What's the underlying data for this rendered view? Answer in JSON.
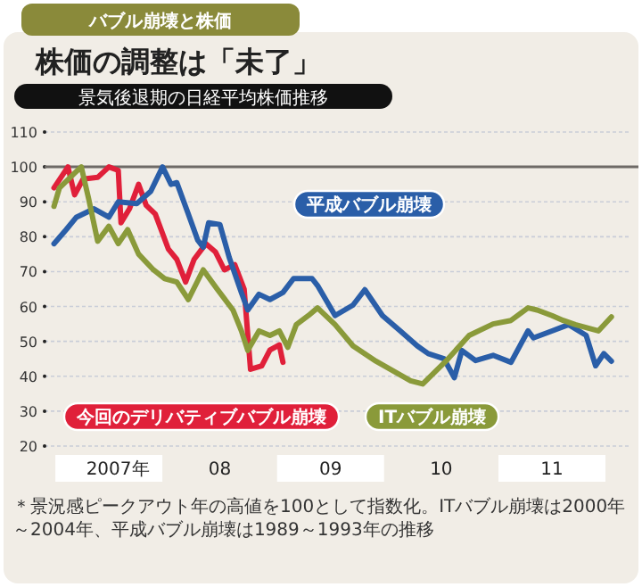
{
  "chart_data": {
    "type": "line",
    "title": "株価の調整は「未了」",
    "subtitle": "景気後退期の日経平均株価推移",
    "annotations": [
      "バブル崩壊と株価",
      "＊景況感ピークアウト年の高値を100として指数化。ITバブル崩壊は2000年～2004年、平成バブル崩壊は1989～1993年の推移"
    ],
    "xlim": [
      "2006-12-01",
      "2012-03-01"
    ],
    "xticks": [
      {
        "value": "2007-07-01",
        "label": "2007年"
      },
      {
        "value": "2008-07-01",
        "label": "08"
      },
      {
        "value": "2009-07-01",
        "label": "09"
      },
      {
        "value": "2010-07-01",
        "label": "10"
      },
      {
        "value": "2011-07-01",
        "label": "11"
      }
    ],
    "ylim": [
      20,
      110
    ],
    "yticks": [
      20,
      30,
      40,
      50,
      60,
      70,
      80,
      90,
      100,
      110
    ],
    "grid": "y",
    "ref_lines": [
      {
        "axis": "y",
        "value": 100,
        "color": "#6e6a66"
      }
    ],
    "series": [
      {
        "name": "今回のデリバティブバブル崩壊",
        "color": "#e0203a",
        "x": [
          "2007-01-01",
          "2007-02-16",
          "2007-03-10",
          "2007-04-07",
          "2007-05-25",
          "2007-07-01",
          "2007-08-01",
          "2007-08-10",
          "2007-09-07",
          "2007-10-07",
          "2007-11-01",
          "2007-12-01",
          "2008-01-13",
          "2008-02-10",
          "2008-03-10",
          "2008-04-07",
          "2008-05-16",
          "2008-06-16",
          "2008-07-16",
          "2008-08-19",
          "2008-09-19",
          "2008-10-10",
          "2008-11-16",
          "2008-12-13",
          "2009-01-13",
          "2009-01-25"
        ],
        "values": [
          94,
          100,
          92,
          96.5,
          97,
          100,
          99,
          84,
          88,
          95,
          89,
          86.5,
          76.5,
          73.5,
          67,
          73.5,
          78,
          75.7,
          70.5,
          72,
          65,
          42,
          43,
          47.5,
          49,
          44
        ]
      },
      {
        "name": "平成バブル崩壊",
        "color": "#2a5ea8",
        "x": [
          "2007-01-01",
          "2007-02-10",
          "2007-03-16",
          "2007-05-13",
          "2007-07-01",
          "2007-08-01",
          "2007-10-01",
          "2007-11-16",
          "2007-12-25",
          "2008-01-22",
          "2008-02-10",
          "2008-03-19",
          "2008-04-19",
          "2008-05-07",
          "2008-05-25",
          "2008-07-01",
          "2008-08-01",
          "2008-09-10",
          "2008-10-01",
          "2008-11-07",
          "2008-12-13",
          "2009-01-25",
          "2009-03-01",
          "2009-05-01",
          "2009-05-19",
          "2009-07-16",
          "2009-09-13",
          "2009-10-22",
          "2009-12-19",
          "2010-02-16",
          "2010-04-13",
          "2010-05-19",
          "2010-07-10",
          "2010-08-13",
          "2010-09-07",
          "2010-10-22",
          "2010-12-19",
          "2011-02-16",
          "2011-04-13",
          "2011-05-01",
          "2011-07-01",
          "2011-08-25",
          "2011-10-22",
          "2011-11-22",
          "2011-12-19",
          "2012-01-13"
        ],
        "values": [
          78,
          82,
          85.6,
          88,
          85.6,
          90,
          89.5,
          93,
          100,
          95,
          95.5,
          86.5,
          79,
          77,
          84,
          83.5,
          74,
          64,
          59,
          63.5,
          62,
          64,
          68,
          68,
          66,
          57.4,
          60.4,
          64.8,
          57.4,
          53,
          48.7,
          46.5,
          45,
          39.6,
          47.4,
          44.5,
          46,
          44,
          53,
          51,
          53,
          54.8,
          51.7,
          43,
          46.5,
          44.3
        ]
      },
      {
        "name": "ITバブル崩壊",
        "color": "#8a9a3a",
        "x": [
          "2007-01-01",
          "2007-01-19",
          "2007-03-16",
          "2007-04-01",
          "2007-04-25",
          "2007-05-25",
          "2007-07-01",
          "2007-08-01",
          "2007-09-01",
          "2007-10-07",
          "2007-11-25",
          "2008-01-01",
          "2008-02-10",
          "2008-03-19",
          "2008-05-07",
          "2008-06-22",
          "2008-08-13",
          "2008-09-10",
          "2008-10-01",
          "2008-11-07",
          "2008-12-13",
          "2009-01-13",
          "2009-02-10",
          "2009-03-10",
          "2009-04-19",
          "2009-05-19",
          "2009-07-16",
          "2009-09-13",
          "2009-11-28",
          "2010-03-22",
          "2010-05-01",
          "2010-07-16",
          "2010-10-01",
          "2010-12-19",
          "2011-02-16",
          "2011-04-13",
          "2011-05-13",
          "2011-07-01",
          "2011-08-07",
          "2011-09-16",
          "2011-12-01",
          "2012-01-13"
        ],
        "values": [
          88.7,
          94,
          98.7,
          100,
          91,
          78.7,
          83,
          78,
          82,
          75,
          70.5,
          68,
          67,
          62,
          70.5,
          65,
          59,
          53,
          47.4,
          53,
          51.7,
          53,
          48.3,
          54.8,
          57.4,
          59.6,
          54.8,
          48.7,
          44.3,
          38.7,
          37.8,
          44.3,
          51.7,
          55,
          56,
          59.6,
          59,
          57.4,
          56,
          54.8,
          53,
          57
        ]
      }
    ]
  }
}
